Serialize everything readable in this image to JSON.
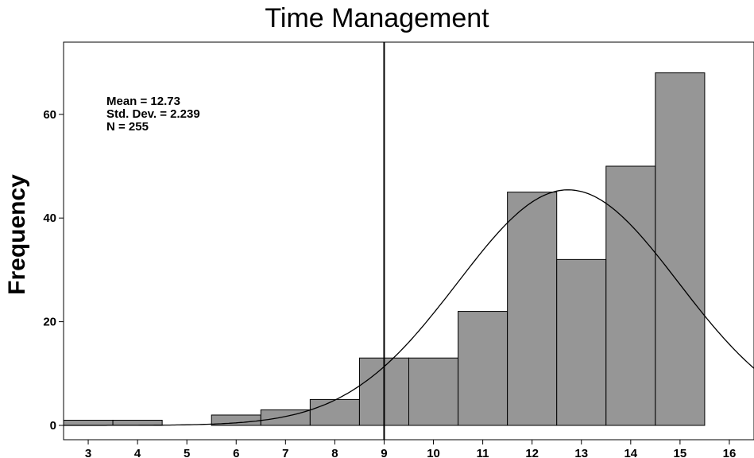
{
  "chart_data": {
    "type": "bar",
    "title": "Time Management",
    "xlabel": "",
    "ylabel": "Frequency",
    "bins": [
      3,
      4,
      5,
      6,
      7,
      8,
      9,
      10,
      11,
      12,
      13,
      14,
      15
    ],
    "values": [
      1,
      1,
      0,
      2,
      3,
      5,
      13,
      13,
      22,
      45,
      32,
      50,
      68
    ],
    "x_ticks": [
      3,
      4,
      5,
      6,
      7,
      8,
      9,
      10,
      11,
      12,
      13,
      14,
      15,
      16
    ],
    "y_ticks": [
      0,
      20,
      40,
      60
    ],
    "xlim": [
      2.5,
      16.5
    ],
    "ylim": [
      0,
      74
    ],
    "grid": false,
    "stats": {
      "mean": "Mean = 12.73",
      "std": "Std. Dev. = 2.239",
      "n": "N = 255"
    },
    "normal_curve": {
      "mean": 12.73,
      "sd": 2.239,
      "n": 255,
      "bin_width": 1
    },
    "reference_line_x": 9,
    "colors": {
      "bar_fill": "#969696",
      "bar_stroke": "#000000",
      "curve": "#000000"
    }
  }
}
